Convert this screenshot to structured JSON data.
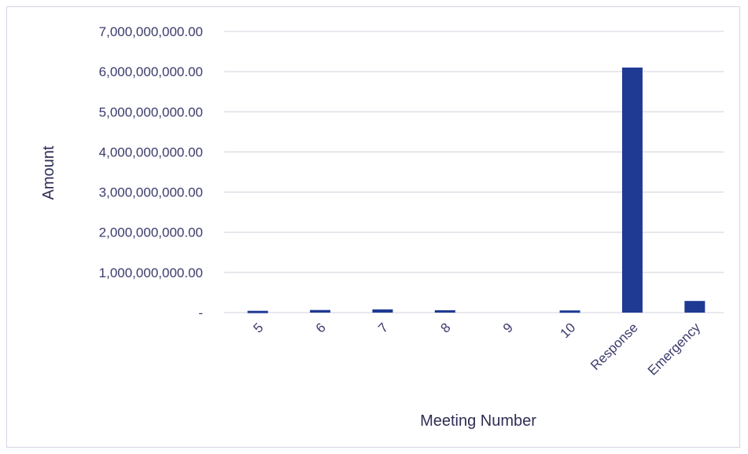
{
  "chart_data": {
    "type": "bar",
    "title": "",
    "xlabel": "Meeting Number",
    "ylabel": "Amount",
    "categories": [
      "5",
      "6",
      "7",
      "8",
      "9",
      "10",
      "Response",
      "Emergency"
    ],
    "values": [
      45000000,
      65000000,
      80000000,
      60000000,
      0,
      55000000,
      6100000000,
      290000000
    ],
    "ylim": [
      0,
      7000000000
    ],
    "y_ticks": [
      {
        "value": 0,
        "label": "-"
      },
      {
        "value": 1000000000,
        "label": "1,000,000,000.00"
      },
      {
        "value": 2000000000,
        "label": "2,000,000,000.00"
      },
      {
        "value": 3000000000,
        "label": "3,000,000,000.00"
      },
      {
        "value": 4000000000,
        "label": "4,000,000,000.00"
      },
      {
        "value": 5000000000,
        "label": "5,000,000,000.00"
      },
      {
        "value": 6000000000,
        "label": "6,000,000,000.00"
      },
      {
        "value": 7000000000,
        "label": "7,000,000,000.00"
      }
    ],
    "grid": true,
    "bar_color": "#1f3a93",
    "grid_color": "#d0d0dc",
    "legend": "none"
  }
}
